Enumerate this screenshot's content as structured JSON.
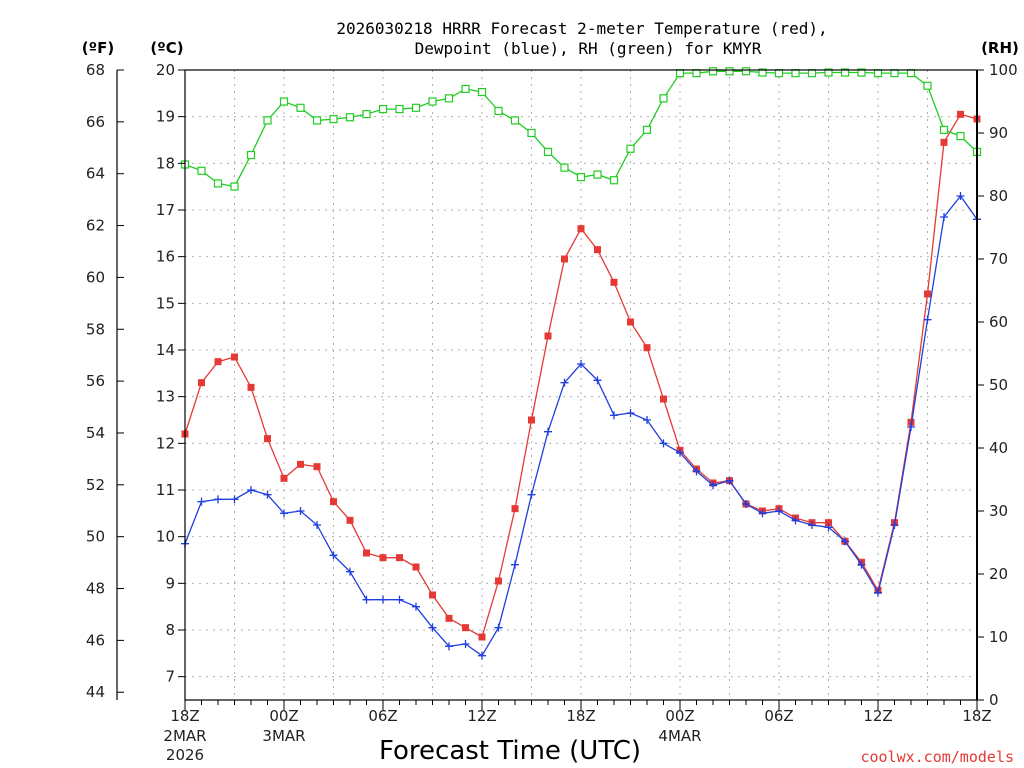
{
  "title_line1": "2026030218 HRRR Forecast 2-meter Temperature (red),",
  "title_line2": "Dewpoint (blue), RH (green) for KMYR",
  "credit": "coolwx.com/models",
  "units": {
    "f": "(ºF)",
    "c": "(ºC)",
    "rh": "(RH)"
  },
  "colors": {
    "temperature": "#e53935",
    "dewpoint": "#1f3fe0",
    "rh": "#22cc22",
    "grid": "#b0b0b0"
  },
  "chart_data": {
    "type": "line",
    "title": "2026030218 HRRR Forecast 2-meter Temperature (red), Dewpoint (blue), RH (green) for KMYR",
    "xlabel": "Forecast Time (UTC)",
    "x_hours": [
      0,
      1,
      2,
      3,
      4,
      5,
      6,
      7,
      8,
      9,
      10,
      11,
      12,
      13,
      14,
      15,
      16,
      17,
      18,
      19,
      20,
      21,
      22,
      23,
      24,
      25,
      26,
      27,
      28,
      29,
      30,
      31,
      32,
      33,
      34,
      35,
      36,
      37,
      38,
      39,
      40,
      41,
      42,
      43,
      44,
      45,
      46,
      47,
      48
    ],
    "xlim": [
      0,
      48
    ],
    "x_ticks": [
      {
        "hour": 0,
        "label": "18Z",
        "date": "2MAR",
        "year": "2026"
      },
      {
        "hour": 6,
        "label": "00Z",
        "date": "3MAR",
        "year": ""
      },
      {
        "hour": 12,
        "label": "06Z",
        "date": "",
        "year": ""
      },
      {
        "hour": 18,
        "label": "12Z",
        "date": "",
        "year": ""
      },
      {
        "hour": 24,
        "label": "18Z",
        "date": "",
        "year": ""
      },
      {
        "hour": 30,
        "label": "00Z",
        "date": "4MAR",
        "year": ""
      },
      {
        "hour": 36,
        "label": "06Z",
        "date": "",
        "year": ""
      },
      {
        "hour": 42,
        "label": "12Z",
        "date": "",
        "year": ""
      },
      {
        "hour": 48,
        "label": "18Z",
        "date": "",
        "year": ""
      }
    ],
    "y_left_f": {
      "label": "(ºF)",
      "ticks": [
        44,
        46,
        48,
        50,
        52,
        54,
        56,
        58,
        60,
        62,
        64,
        66,
        68
      ]
    },
    "y_left_c": {
      "label": "(ºC)",
      "ylim": [
        6.5,
        20
      ],
      "ticks": [
        7,
        8,
        9,
        10,
        11,
        12,
        13,
        14,
        15,
        16,
        17,
        18,
        19,
        20
      ]
    },
    "y_right_rh": {
      "label": "(RH)",
      "ylim": [
        0,
        100
      ],
      "ticks": [
        0,
        10,
        20,
        30,
        40,
        50,
        60,
        70,
        80,
        90,
        100
      ]
    },
    "series": [
      {
        "name": "Temperature",
        "axis": "c",
        "color": "#e53935",
        "marker": "square-filled",
        "values": [
          12.2,
          13.3,
          13.75,
          13.85,
          13.2,
          12.1,
          11.25,
          11.55,
          11.5,
          10.75,
          10.35,
          9.65,
          9.55,
          9.55,
          9.35,
          8.75,
          8.25,
          8.05,
          7.85,
          9.05,
          10.6,
          12.5,
          14.3,
          15.95,
          16.6,
          16.15,
          15.45,
          14.6,
          14.05,
          12.95,
          11.85,
          11.45,
          11.15,
          11.2,
          10.7,
          10.55,
          10.6,
          10.4,
          10.3,
          10.3,
          9.9,
          9.45,
          8.85,
          10.3,
          12.45,
          15.2,
          18.45,
          19.05,
          18.95
        ]
      },
      {
        "name": "Dewpoint",
        "axis": "c",
        "color": "#1f3fe0",
        "marker": "plus",
        "values": [
          9.85,
          10.75,
          10.8,
          10.8,
          11.0,
          10.9,
          10.5,
          10.55,
          10.25,
          9.6,
          9.25,
          8.65,
          8.65,
          8.65,
          8.5,
          8.05,
          7.65,
          7.7,
          7.45,
          8.05,
          9.4,
          10.9,
          12.25,
          13.3,
          13.7,
          13.35,
          12.6,
          12.65,
          12.5,
          12.0,
          11.8,
          11.4,
          11.1,
          11.2,
          10.7,
          10.5,
          10.55,
          10.35,
          10.25,
          10.2,
          9.9,
          9.4,
          8.8,
          10.25,
          12.35,
          14.65,
          16.85,
          17.3,
          16.8
        ]
      },
      {
        "name": "RH",
        "axis": "rh",
        "color": "#22cc22",
        "marker": "square-open",
        "values": [
          85,
          84,
          82,
          81.5,
          86.5,
          92,
          95,
          94,
          92,
          92.2,
          92.5,
          93,
          93.8,
          93.8,
          94,
          95,
          95.5,
          97,
          96.5,
          93.5,
          92,
          90,
          87,
          84.5,
          83,
          83.4,
          82.5,
          87.5,
          90.5,
          95.5,
          99.5,
          99.5,
          99.8,
          99.8,
          99.8,
          99.6,
          99.5,
          99.5,
          99.5,
          99.6,
          99.6,
          99.6,
          99.5,
          99.5,
          99.5,
          97.5,
          90.5,
          89.5,
          87
        ]
      }
    ]
  }
}
